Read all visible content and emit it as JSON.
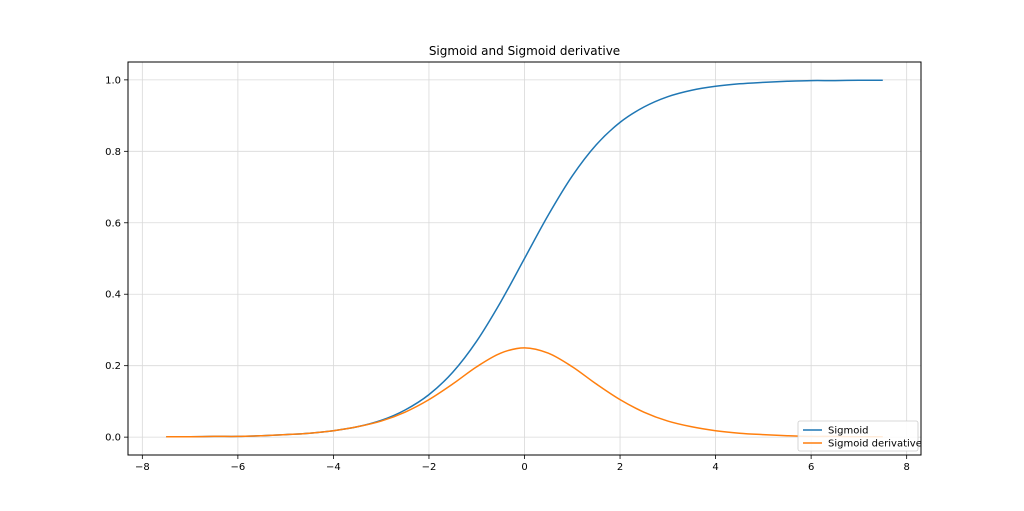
{
  "chart_data": {
    "type": "line",
    "title": "Sigmoid and Sigmoid derivative",
    "xlabel": "",
    "ylabel": "",
    "xlim": [
      -8.3,
      8.3
    ],
    "ylim": [
      -0.05,
      1.05
    ],
    "xticks": [
      -8,
      -6,
      -4,
      -2,
      0,
      2,
      4,
      6,
      8
    ],
    "xtick_labels": [
      "−8",
      "−6",
      "−4",
      "−2",
      "0",
      "2",
      "4",
      "6",
      "8"
    ],
    "yticks": [
      0.0,
      0.2,
      0.4,
      0.6,
      0.8,
      1.0
    ],
    "ytick_labels": [
      "0.0",
      "0.2",
      "0.4",
      "0.6",
      "0.8",
      "1.0"
    ],
    "grid": true,
    "legend_position": "lower-right",
    "x": [
      -7.5,
      -7.0,
      -6.5,
      -6.0,
      -5.5,
      -5.0,
      -4.5,
      -4.0,
      -3.5,
      -3.0,
      -2.5,
      -2.0,
      -1.5,
      -1.0,
      -0.5,
      0.0,
      0.5,
      1.0,
      1.5,
      2.0,
      2.5,
      3.0,
      3.5,
      4.0,
      4.5,
      5.0,
      5.5,
      6.0,
      6.5,
      7.0,
      7.5
    ],
    "series": [
      {
        "name": "Sigmoid",
        "color": "#1f77b4",
        "values": [
          0.001,
          0.001,
          0.002,
          0.002,
          0.004,
          0.007,
          0.011,
          0.018,
          0.029,
          0.047,
          0.076,
          0.119,
          0.182,
          0.269,
          0.378,
          0.5,
          0.622,
          0.731,
          0.818,
          0.881,
          0.924,
          0.953,
          0.971,
          0.982,
          0.989,
          0.993,
          0.996,
          0.998,
          0.998,
          0.999,
          0.999
        ]
      },
      {
        "name": "Sigmoid derivative",
        "color": "#ff7f0e",
        "values": [
          0.001,
          0.001,
          0.002,
          0.002,
          0.004,
          0.007,
          0.011,
          0.018,
          0.029,
          0.045,
          0.07,
          0.105,
          0.149,
          0.197,
          0.235,
          0.25,
          0.235,
          0.197,
          0.149,
          0.105,
          0.07,
          0.045,
          0.029,
          0.018,
          0.011,
          0.007,
          0.004,
          0.002,
          0.002,
          0.001,
          0.001
        ]
      }
    ]
  }
}
